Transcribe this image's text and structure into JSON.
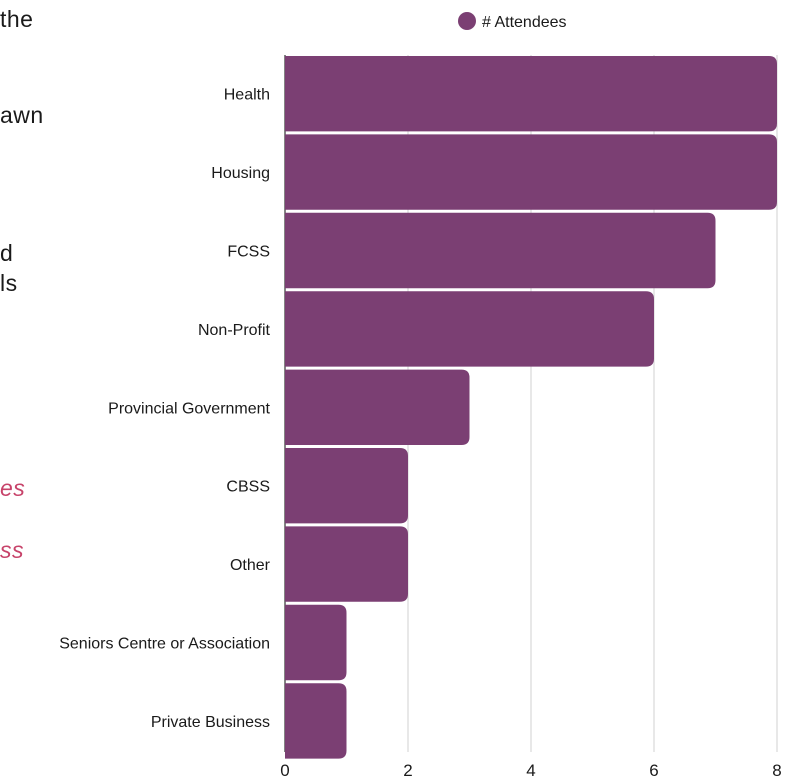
{
  "background_fragments": [
    "the",
    "awn",
    "d",
    "ls",
    "es",
    "ss"
  ],
  "chart_data": {
    "type": "bar",
    "orientation": "horizontal",
    "categories": [
      "Health",
      "Housing",
      "FCSS",
      "Non-Profit",
      "Provincial Government",
      "CBSS",
      "Other",
      "Seniors Centre or Association",
      "Private Business"
    ],
    "series": [
      {
        "name": "# Attendees",
        "values": [
          8,
          8,
          7,
          6,
          3,
          2,
          2,
          1,
          1
        ],
        "color": "#7b3f73"
      }
    ],
    "x_ticks": [
      "0",
      "2",
      "4",
      "6",
      "8"
    ],
    "xlim": [
      0,
      8
    ],
    "grid": "vertical",
    "legend_position": "top-right",
    "title": "",
    "xlabel": "",
    "ylabel": ""
  }
}
